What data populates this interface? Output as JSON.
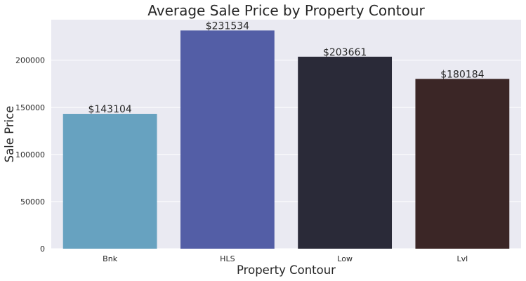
{
  "chart_data": {
    "type": "bar",
    "title": "Average Sale Price by Property Contour",
    "xlabel": "Property Contour",
    "ylabel": "Sale Price",
    "categories": [
      "Bnk",
      "HLS",
      "Low",
      "Lvl"
    ],
    "values": [
      143104,
      231534,
      203661,
      180184
    ],
    "data_labels": [
      "$143104",
      "$231534",
      "$203661",
      "$180184"
    ],
    "colors": [
      "#67a2c0",
      "#535ea6",
      "#2a2a38",
      "#3b2626"
    ],
    "ylim": [
      0,
      243000
    ],
    "yticks": [
      0,
      50000,
      100000,
      150000,
      200000
    ],
    "ytick_labels": [
      "0",
      "50000",
      "100000",
      "150000",
      "200000"
    ],
    "grid": true,
    "background_color": "#eaeaf2",
    "grid_color": "#ffffff"
  }
}
